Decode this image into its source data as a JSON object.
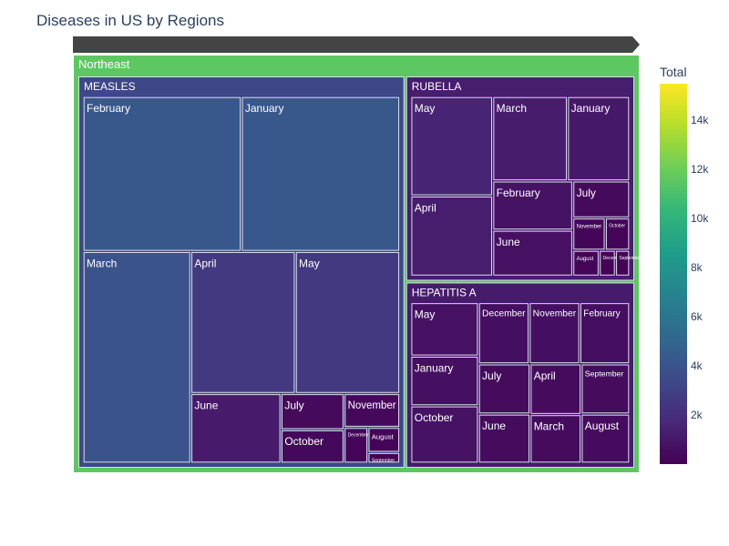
{
  "chart_data": {
    "type": "treemap",
    "title": "Diseases in US by Regions",
    "colorbar": {
      "title": "Total",
      "tick_labels": [
        "2k",
        "4k",
        "6k",
        "8k",
        "10k",
        "12k",
        "14k"
      ],
      "tick_values": [
        2000,
        4000,
        6000,
        8000,
        10000,
        12000,
        14000
      ],
      "range": [
        0,
        15500
      ],
      "colorscale": [
        "#440154",
        "#482878",
        "#3e4989",
        "#31688e",
        "#26828e",
        "#1f9e89",
        "#35b779",
        "#6ece58",
        "#b5de2b",
        "#fde725"
      ]
    },
    "root": {
      "label": "Northeast",
      "children": [
        {
          "label": "MEASLES",
          "children": [
            {
              "label": "February",
              "value": 4300
            },
            {
              "label": "January",
              "value": 4300
            },
            {
              "label": "March",
              "value": 4000
            },
            {
              "label": "April",
              "value": 2600
            },
            {
              "label": "May",
              "value": 2600
            },
            {
              "label": "June",
              "value": 1100
            },
            {
              "label": "July",
              "value": 400
            },
            {
              "label": "October",
              "value": 370
            },
            {
              "label": "November",
              "value": 330
            },
            {
              "label": "December",
              "value": 150
            },
            {
              "label": "August",
              "value": 140
            },
            {
              "label": "September",
              "value": 60
            }
          ]
        },
        {
          "label": "RUBELLA",
          "children": [
            {
              "label": "May",
              "value": 1550
            },
            {
              "label": "April",
              "value": 1250
            },
            {
              "label": "March",
              "value": 1200
            },
            {
              "label": "January",
              "value": 1000
            },
            {
              "label": "February",
              "value": 750
            },
            {
              "label": "June",
              "value": 700
            },
            {
              "label": "July",
              "value": 400
            },
            {
              "label": "November",
              "value": 200
            },
            {
              "label": "October",
              "value": 150
            },
            {
              "label": "August",
              "value": 130
            },
            {
              "label": "December",
              "value": 80
            },
            {
              "label": "September",
              "value": 70
            }
          ]
        },
        {
          "label": "HEPATITIS A",
          "children": [
            {
              "label": "May",
              "value": 700
            },
            {
              "label": "January",
              "value": 650
            },
            {
              "label": "October",
              "value": 750
            },
            {
              "label": "December",
              "value": 600
            },
            {
              "label": "November",
              "value": 600
            },
            {
              "label": "February",
              "value": 590
            },
            {
              "label": "July",
              "value": 500
            },
            {
              "label": "June",
              "value": 490
            },
            {
              "label": "April",
              "value": 500
            },
            {
              "label": "March",
              "value": 480
            },
            {
              "label": "September",
              "value": 470
            },
            {
              "label": "August",
              "value": 460
            }
          ]
        }
      ]
    }
  }
}
